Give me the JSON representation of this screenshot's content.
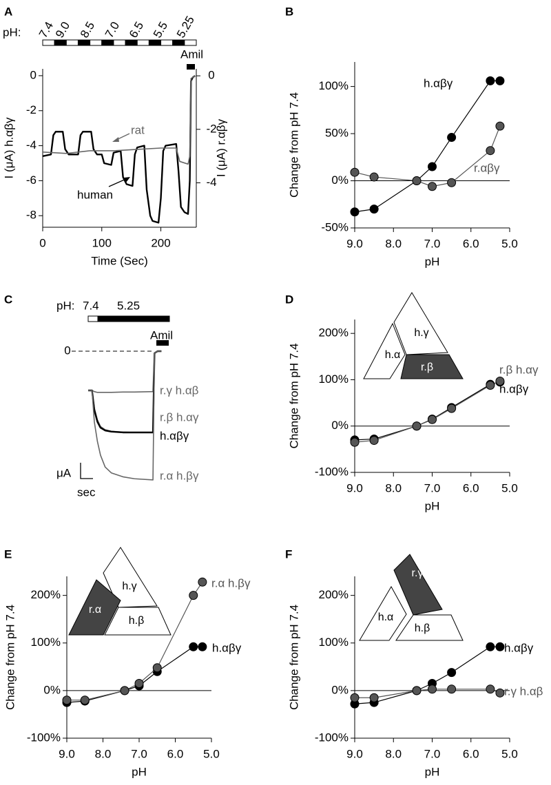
{
  "chart_data": [
    {
      "panel": "A",
      "type": "line",
      "ph_protocol": {
        "label": "pH:",
        "steps": [
          "7.4",
          "9.0",
          "8.5",
          "7.0",
          "6.5",
          "5.5",
          "5.25"
        ]
      },
      "blocker": "Amil",
      "xlabel": "Time (Sec)",
      "ylabel": "I (μA) h.αβγ",
      "y2label": "I (μA) r.αβγ",
      "xlim": [
        0,
        260
      ],
      "xticks": [
        0,
        100,
        200
      ],
      "ylim": [
        -8.66,
        0.39
      ],
      "yticks": [
        0,
        -2,
        -4,
        -6,
        -8
      ],
      "y2lim": [
        -5.66,
        0.26
      ],
      "y2ticks": [
        0,
        -2,
        -4
      ],
      "series": [
        {
          "name": "human",
          "color": "#000000",
          "x": [
            0,
            14,
            18,
            22,
            34,
            38,
            44,
            60,
            64,
            68,
            82,
            86,
            92,
            100,
            104,
            116,
            120,
            132,
            136,
            142,
            152,
            156,
            160,
            172,
            176,
            182,
            186,
            196,
            200,
            204,
            208,
            226,
            230,
            234,
            240,
            246,
            249,
            251,
            254,
            258
          ],
          "values": [
            -4.6,
            -4.5,
            -3.4,
            -3.2,
            -3.2,
            -4.2,
            -4.5,
            -4.5,
            -3.4,
            -3.2,
            -3.2,
            -4.2,
            -4.5,
            -4.5,
            -5.0,
            -5.1,
            -4.4,
            -4.3,
            -5.8,
            -6.2,
            -6.3,
            -4.5,
            -4.1,
            -4.0,
            -6.5,
            -8.0,
            -8.3,
            -8.4,
            -7.0,
            -4.3,
            -4.0,
            -3.9,
            -5.5,
            -7.5,
            -7.8,
            -7.9,
            -6,
            -0.3,
            -0.1,
            0
          ]
        },
        {
          "name": "rat",
          "color": "#666666",
          "axis": "y2",
          "x": [
            0,
            40,
            80,
            120,
            160,
            200,
            226,
            232,
            246,
            249,
            251,
            258
          ],
          "values": [
            -2.85,
            -2.9,
            -2.8,
            -2.8,
            -2.75,
            -2.7,
            -2.7,
            -3.2,
            -3.3,
            -3,
            -0.1,
            0
          ]
        }
      ]
    },
    {
      "panel": "B",
      "type": "line",
      "markers": true,
      "zero_line": true,
      "xlabel": "pH",
      "ylabel": "Change from pH 7.4",
      "x": [
        9.0,
        8.5,
        7.4,
        7.0,
        6.5,
        5.5,
        5.25
      ],
      "xlim": [
        9,
        5
      ],
      "xticks": [
        {
          "value": 9,
          "label": "9.0"
        },
        {
          "value": 8,
          "label": "8.0"
        },
        {
          "value": 7,
          "label": "7.0"
        },
        {
          "value": 6,
          "label": "6.0"
        },
        {
          "value": 5,
          "label": "5.0"
        }
      ],
      "ylim": [
        -50,
        126
      ],
      "yticks": [
        {
          "value": -50,
          "label": "-50%"
        },
        {
          "value": 0,
          "label": "0%"
        },
        {
          "value": 50,
          "label": "50%"
        },
        {
          "value": 100,
          "label": "100%"
        }
      ],
      "series": [
        {
          "name": "h.αβγ",
          "color": "#000000",
          "values": [
            -33,
            -30,
            0,
            15,
            46,
            106,
            106
          ]
        },
        {
          "name": "r.αβγ",
          "color": "#555555",
          "values": [
            9,
            4,
            0,
            -6,
            -2,
            32,
            58
          ]
        }
      ]
    },
    {
      "panel": "C",
      "type": "line",
      "axes": false,
      "ph_protocol": {
        "label": "pH:",
        "steps": [
          "7.4",
          "5.25"
        ]
      },
      "blocker": "Amil",
      "scale_bar": [
        "μA",
        "sec"
      ],
      "x": [
        0,
        5,
        8,
        12,
        16,
        22,
        30,
        45,
        60,
        84,
        86,
        90,
        95
      ],
      "xlim": [
        0,
        100
      ],
      "ylim": [
        -3.5,
        0.5
      ],
      "yticks": [
        0
      ],
      "series": [
        {
          "name": "r.γ h.αβ",
          "color": "#666666",
          "values": [
            -1,
            -1,
            -1.03,
            -1.05,
            -1.05,
            -1.05,
            -1.05,
            -1.04,
            -1.04,
            -1.03,
            -0.05,
            0,
            0
          ]
        },
        {
          "name": "r.β h.αγ",
          "color": "#666666",
          "values": [
            -1,
            -1,
            -1.45,
            -1.75,
            -1.92,
            -2.0,
            -2.04,
            -2.06,
            -2.07,
            -2.07,
            -0.05,
            0,
            0
          ]
        },
        {
          "name": "h.αβγ",
          "color": "#000000",
          "values": [
            -1,
            -1,
            -1.5,
            -1.8,
            -1.95,
            -2.02,
            -2.05,
            -2.07,
            -2.07,
            -2.07,
            -0.05,
            0,
            0
          ]
        },
        {
          "name": "r.α h.βγ",
          "color": "#666666",
          "values": [
            -1,
            -1,
            -1.8,
            -2.3,
            -2.65,
            -2.95,
            -3.1,
            -3.2,
            -3.25,
            -3.28,
            -0.05,
            0,
            0
          ]
        }
      ]
    },
    {
      "panel": "D",
      "type": "line",
      "markers": true,
      "zero_line": true,
      "xlabel": "pH",
      "ylabel": "Change from pH 7.4",
      "diagram": [
        "h.γ",
        "h.α",
        "r.β"
      ],
      "x": [
        9.0,
        8.5,
        7.4,
        7.0,
        6.5,
        5.5,
        5.25
      ],
      "xlim": [
        9,
        5
      ],
      "xticks": [
        {
          "value": 9,
          "label": "9.0"
        },
        {
          "value": 8,
          "label": "8.0"
        },
        {
          "value": 7,
          "label": "7.0"
        },
        {
          "value": 6,
          "label": "6.0"
        },
        {
          "value": 5,
          "label": "5.0"
        }
      ],
      "ylim": [
        -100,
        230
      ],
      "yticks": [
        {
          "value": -100,
          "label": "-100%"
        },
        {
          "value": 0,
          "label": "0%"
        },
        {
          "value": 100,
          "label": "100%"
        },
        {
          "value": 200,
          "label": "200%"
        }
      ],
      "series": [
        {
          "name": "h.αβγ",
          "color": "#000000",
          "values": [
            -30,
            -28,
            0,
            15,
            40,
            90,
            95
          ]
        },
        {
          "name": "r.β h.αγ",
          "color": "#555555",
          "values": [
            -35,
            -31,
            0,
            14,
            38,
            88,
            97
          ]
        }
      ]
    },
    {
      "panel": "E",
      "type": "line",
      "markers": true,
      "zero_line": true,
      "xlabel": "pH",
      "ylabel": "Change from pH 7.4",
      "diagram": [
        "h.γ",
        "r.α",
        "h.β"
      ],
      "x": [
        9.0,
        8.5,
        7.4,
        7.0,
        6.5,
        5.5,
        5.25
      ],
      "xlim": [
        9,
        5
      ],
      "xticks": [
        {
          "value": 9,
          "label": "9.0"
        },
        {
          "value": 8,
          "label": "8.0"
        },
        {
          "value": 7,
          "label": "7.0"
        },
        {
          "value": 6,
          "label": "6.0"
        },
        {
          "value": 5,
          "label": "5.0"
        }
      ],
      "ylim": [
        -100,
        240
      ],
      "yticks": [
        {
          "value": -100,
          "label": "-100%"
        },
        {
          "value": 0,
          "label": "0%"
        },
        {
          "value": 100,
          "label": "100%"
        },
        {
          "value": 200,
          "label": "200%"
        }
      ],
      "series": [
        {
          "name": "h.αβγ",
          "color": "#000000",
          "values": [
            -25,
            -22,
            0,
            10,
            40,
            92,
            92
          ]
        },
        {
          "name": "r.α h.βγ",
          "color": "#555555",
          "values": [
            -20,
            -20,
            0,
            15,
            48,
            200,
            228
          ]
        }
      ]
    },
    {
      "panel": "F",
      "type": "line",
      "markers": true,
      "zero_line": true,
      "xlabel": "pH",
      "ylabel": "Change from pH 7.4",
      "diagram": [
        "r.γ",
        "h.α",
        "h.β"
      ],
      "x": [
        9.0,
        8.5,
        7.4,
        7.0,
        6.5,
        5.5,
        5.25
      ],
      "xlim": [
        9,
        5
      ],
      "xticks": [
        {
          "value": 9,
          "label": "9.0"
        },
        {
          "value": 8,
          "label": "8.0"
        },
        {
          "value": 7,
          "label": "7.0"
        },
        {
          "value": 6,
          "label": "6.0"
        },
        {
          "value": 5,
          "label": "5.0"
        }
      ],
      "ylim": [
        -100,
        240
      ],
      "yticks": [
        {
          "value": -100,
          "label": "-100%"
        },
        {
          "value": 0,
          "label": "0%"
        },
        {
          "value": 100,
          "label": "100%"
        },
        {
          "value": 200,
          "label": "200%"
        }
      ],
      "series": [
        {
          "name": "h.αβγ",
          "color": "#000000",
          "values": [
            -28,
            -25,
            0,
            15,
            38,
            92,
            92
          ]
        },
        {
          "name": "r.γ h.αβ",
          "color": "#555555",
          "values": [
            -15,
            -15,
            0,
            3,
            3,
            3,
            -5
          ]
        }
      ]
    }
  ]
}
